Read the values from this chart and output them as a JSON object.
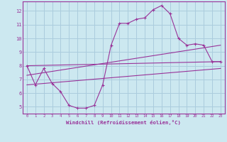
{
  "xlabel": "Windchill (Refroidissement éolien,°C)",
  "bg_color": "#cce8f0",
  "grid_color": "#aaccdd",
  "line_color": "#993399",
  "x_ticks": [
    0,
    1,
    2,
    3,
    4,
    5,
    6,
    7,
    8,
    9,
    10,
    11,
    12,
    13,
    14,
    15,
    16,
    17,
    18,
    19,
    20,
    21,
    22,
    23
  ],
  "y_ticks": [
    5,
    6,
    7,
    8,
    9,
    10,
    11,
    12
  ],
  "ylim": [
    4.5,
    12.7
  ],
  "xlim": [
    -0.5,
    23.5
  ],
  "curve_x": [
    0,
    1,
    2,
    3,
    4,
    5,
    6,
    7,
    8,
    9,
    10,
    11,
    12,
    13,
    14,
    15,
    16,
    17,
    18,
    19,
    20,
    21,
    22,
    23
  ],
  "curve_y": [
    8.0,
    6.6,
    7.8,
    6.7,
    6.1,
    5.1,
    4.9,
    4.9,
    5.1,
    6.6,
    9.5,
    11.1,
    11.1,
    11.4,
    11.5,
    12.1,
    12.4,
    11.8,
    10.0,
    9.5,
    9.6,
    9.5,
    8.3,
    8.3
  ],
  "line1_x": [
    0,
    23
  ],
  "line1_y": [
    8.0,
    8.3
  ],
  "line2_x": [
    0,
    23
  ],
  "line2_y": [
    7.3,
    9.5
  ],
  "line3_x": [
    0,
    23
  ],
  "line3_y": [
    6.6,
    7.8
  ]
}
